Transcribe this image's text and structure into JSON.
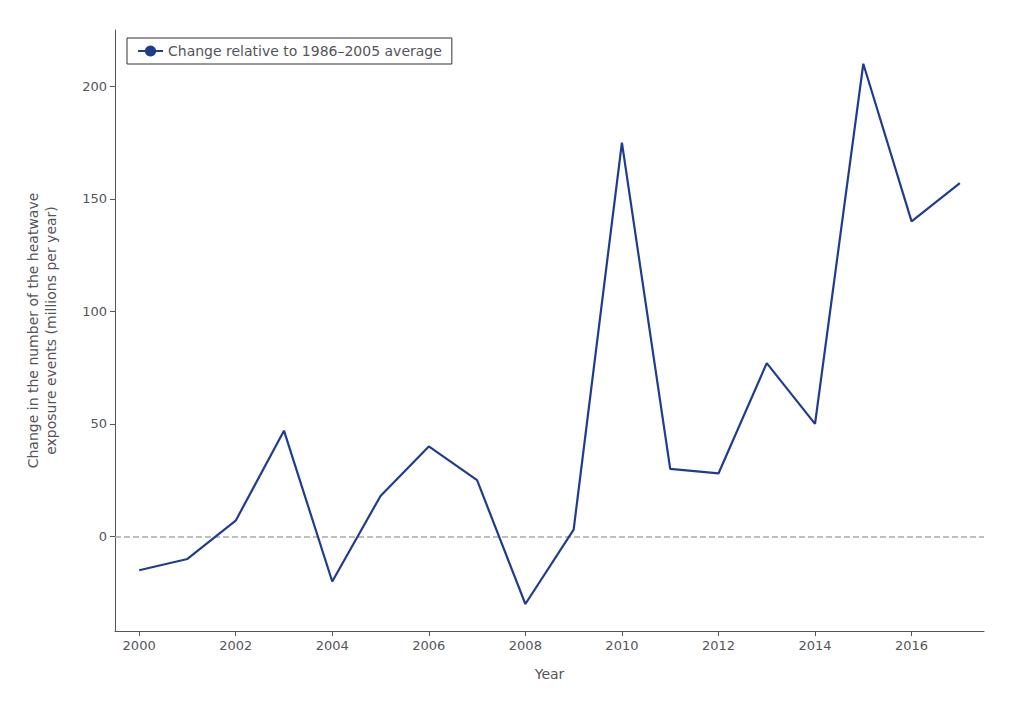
{
  "chart_data": {
    "type": "line",
    "x": [
      2000,
      2001,
      2002,
      2003,
      2004,
      2005,
      2006,
      2007,
      2008,
      2009,
      2010,
      2011,
      2012,
      2013,
      2014,
      2015,
      2016,
      2017
    ],
    "series": [
      {
        "name": "Change relative to 1986–2005 average",
        "color": "#1f3d8c",
        "values": [
          -15,
          -10,
          7,
          47,
          -20,
          18,
          40,
          25,
          -30,
          3,
          175,
          30,
          28,
          77,
          50,
          210,
          140,
          157
        ]
      }
    ],
    "reference_lines": [
      {
        "y": 0,
        "color": "#aaaaaa",
        "line_style": "dashed"
      }
    ],
    "xlabel": "Year",
    "ylabel": "Change in the number of the heatwave\nexposure events (millions per year)",
    "xlim": [
      1999.5,
      2017.5
    ],
    "xticks": [
      2000,
      2002,
      2004,
      2006,
      2008,
      2010,
      2012,
      2014,
      2016
    ],
    "ylim": [
      -42,
      225
    ],
    "yticks": [
      0,
      50,
      100,
      150,
      200
    ],
    "grid": false,
    "legend": "upper left"
  }
}
